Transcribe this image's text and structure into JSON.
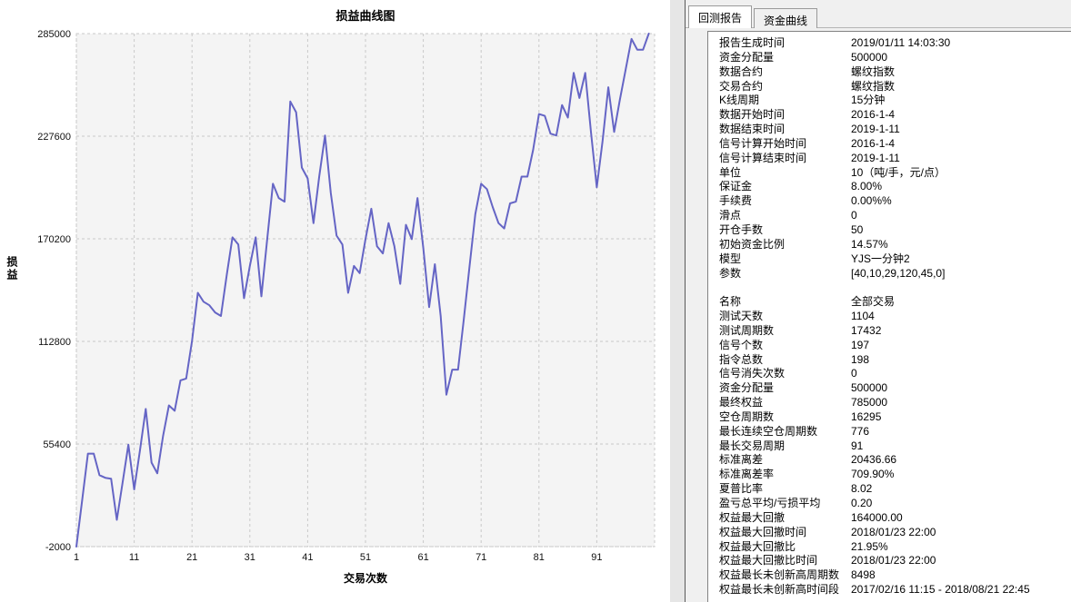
{
  "colors": {
    "chart_line": "#6565c5",
    "plot_bg": "#f4f4f4",
    "grid": "#c9c9c9",
    "panel_bg": "#f0f0f0",
    "box_border": "#828282"
  },
  "chart_data": {
    "type": "line",
    "title": "损益曲线图",
    "xlabel": "交易次数",
    "ylabel": "损益",
    "legend": [],
    "grid": "dashed",
    "xlim": [
      1,
      101
    ],
    "ylim": [
      -2000,
      285000
    ],
    "x_ticks": [
      1,
      11,
      21,
      31,
      41,
      51,
      61,
      71,
      81,
      91
    ],
    "y_ticks": [
      -2000,
      55400,
      112800,
      170200,
      227600,
      285000
    ],
    "x_start": 1,
    "values": [
      -2000,
      24000,
      50000,
      50000,
      38000,
      36500,
      36000,
      13000,
      34000,
      55000,
      30000,
      52000,
      75000,
      45000,
      39000,
      60000,
      77000,
      74000,
      91000,
      92000,
      113000,
      140000,
      135000,
      133000,
      129000,
      127000,
      150000,
      171000,
      167000,
      137000,
      155000,
      171000,
      138000,
      170000,
      201000,
      193000,
      191000,
      247000,
      241000,
      210000,
      204000,
      179000,
      205000,
      228000,
      196000,
      172000,
      167000,
      140000,
      155000,
      151000,
      170000,
      187000,
      166000,
      162000,
      179000,
      166000,
      145000,
      178000,
      170000,
      193000,
      165000,
      132000,
      156000,
      127000,
      83000,
      97000,
      97000,
      125000,
      155000,
      184000,
      201000,
      198000,
      188000,
      179000,
      176000,
      190000,
      191000,
      205000,
      205000,
      220000,
      240000,
      239000,
      229000,
      228000,
      245000,
      238000,
      263000,
      249000,
      263000,
      230000,
      199000,
      225000,
      255000,
      230000,
      248000,
      265000,
      282000,
      276000,
      276000,
      285000
    ]
  },
  "right_panel": {
    "tabs": [
      {
        "label": "回测报告",
        "active": true
      },
      {
        "label": "资金曲线",
        "active": false
      }
    ],
    "rows": [
      {
        "label": "报告生成时间",
        "value": "2019/01/11 14:03:30"
      },
      {
        "label": "资金分配量",
        "value": "500000"
      },
      {
        "label": "数据合约",
        "value": "螺纹指数"
      },
      {
        "label": "交易合约",
        "value": "螺纹指数"
      },
      {
        "label": "K线周期",
        "value": "15分钟"
      },
      {
        "label": "数据开始时间",
        "value": "2016-1-4"
      },
      {
        "label": "数据结束时间",
        "value": "2019-1-11"
      },
      {
        "label": "信号计算开始时间",
        "value": "2016-1-4"
      },
      {
        "label": "信号计算结束时间",
        "value": "2019-1-11"
      },
      {
        "label": "单位",
        "value": "10（吨/手，元/点）"
      },
      {
        "label": "保证金",
        "value": "8.00%"
      },
      {
        "label": "手续费",
        "value": "0.00%%"
      },
      {
        "label": "滑点",
        "value": "0"
      },
      {
        "label": "开仓手数",
        "value": "50"
      },
      {
        "label": "初始资金比例",
        "value": "14.57%"
      },
      {
        "label": "模型",
        "value": "YJS一分钟2"
      },
      {
        "label": "参数",
        "value": "[40,10,29,120,45,0]"
      },
      {
        "label": "",
        "value": ""
      },
      {
        "label": "名称",
        "value": "全部交易"
      },
      {
        "label": "测试天数",
        "value": "1104"
      },
      {
        "label": "测试周期数",
        "value": "17432"
      },
      {
        "label": "信号个数",
        "value": "197"
      },
      {
        "label": "指令总数",
        "value": "198"
      },
      {
        "label": "信号消失次数",
        "value": "0"
      },
      {
        "label": "资金分配量",
        "value": "500000"
      },
      {
        "label": "最终权益",
        "value": "785000"
      },
      {
        "label": "空仓周期数",
        "value": "16295"
      },
      {
        "label": "最长连续空仓周期数",
        "value": "776"
      },
      {
        "label": "最长交易周期",
        "value": "91"
      },
      {
        "label": "标准离差",
        "value": "20436.66"
      },
      {
        "label": "标准离差率",
        "value": "709.90%"
      },
      {
        "label": "夏普比率",
        "value": "8.02"
      },
      {
        "label": "盈亏总平均/亏损平均",
        "value": "0.20"
      },
      {
        "label": "权益最大回撤",
        "value": "164000.00"
      },
      {
        "label": "权益最大回撤时间",
        "value": "2018/01/23 22:00"
      },
      {
        "label": "权益最大回撤比",
        "value": "21.95%"
      },
      {
        "label": "权益最大回撤比时间",
        "value": "2018/01/23 22:00"
      },
      {
        "label": "权益最长未创新高周期数",
        "value": "8498"
      },
      {
        "label": "权益最长未创新高时间段",
        "value": "2017/02/16 11:15 - 2018/08/21 22:45"
      }
    ]
  }
}
